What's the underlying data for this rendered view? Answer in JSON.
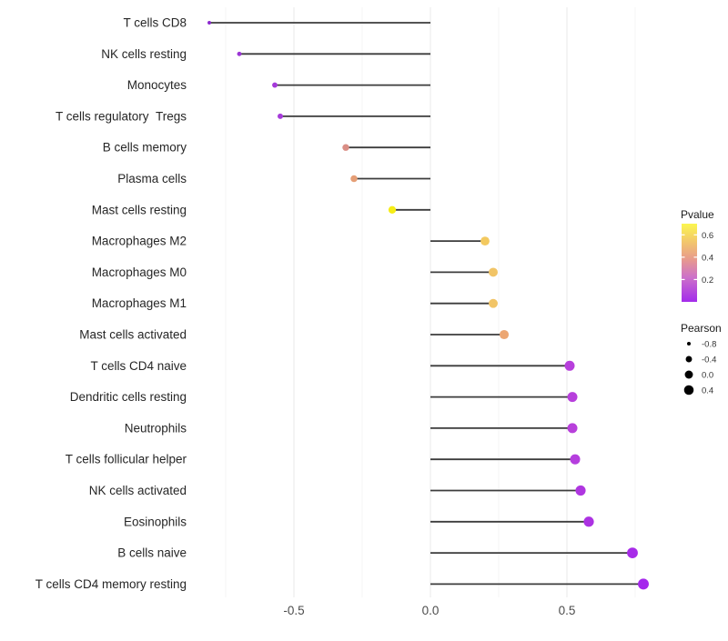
{
  "figure": {
    "background": "#ffffff"
  },
  "chart_data": {
    "type": "scatter",
    "variant": "lollipop",
    "orientation": "horizontal",
    "title": "",
    "xlabel": "",
    "ylabel": "",
    "xlim": [
      -0.89,
      0.87
    ],
    "x_ticks": [
      {
        "label": "-0.5",
        "value": -0.5
      },
      {
        "label": "0.0",
        "value": 0.0
      },
      {
        "label": "0.5",
        "value": 0.5
      }
    ],
    "x_minor_ticks": [
      -0.75,
      -0.25,
      0.25,
      0.75
    ],
    "grid": "vertical only, light gray on white, no axis lines",
    "points": [
      {
        "label": "T cells CD8",
        "pearson": -0.81,
        "color": "#8B27CE"
      },
      {
        "label": "NK cells resting",
        "pearson": -0.7,
        "color": "#9B35D5"
      },
      {
        "label": "Monocytes",
        "pearson": -0.57,
        "color": "#A43AD9"
      },
      {
        "label": "T cells regulatory  Tregs",
        "pearson": -0.55,
        "color": "#A63BDA"
      },
      {
        "label": "B cells memory",
        "pearson": -0.31,
        "color": "#DA8E85"
      },
      {
        "label": "Plasma cells",
        "pearson": -0.28,
        "color": "#E59E76"
      },
      {
        "label": "Mast cells resting",
        "pearson": -0.14,
        "color": "#F6ED16"
      },
      {
        "label": "Macrophages M2",
        "pearson": 0.2,
        "color": "#F3C95F"
      },
      {
        "label": "Macrophages M0",
        "pearson": 0.23,
        "color": "#F1C466"
      },
      {
        "label": "Macrophages M1",
        "pearson": 0.23,
        "color": "#F1C466"
      },
      {
        "label": "Mast cells activated",
        "pearson": 0.27,
        "color": "#ECA672"
      },
      {
        "label": "T cells CD4 naive",
        "pearson": 0.51,
        "color": "#B73FDC"
      },
      {
        "label": "Dendritic cells resting",
        "pearson": 0.52,
        "color": "#B73FDC"
      },
      {
        "label": "Neutrophils",
        "pearson": 0.52,
        "color": "#B840DB"
      },
      {
        "label": "T cells follicular helper",
        "pearson": 0.53,
        "color": "#B53EDE"
      },
      {
        "label": "NK cells activated",
        "pearson": 0.55,
        "color": "#AF36E0"
      },
      {
        "label": "Eosinophils",
        "pearson": 0.58,
        "color": "#AC32E2"
      },
      {
        "label": "B cells naive",
        "pearson": 0.74,
        "color": "#A72BE8"
      },
      {
        "label": "T cells CD4 memory resting",
        "pearson": 0.78,
        "color": "#A527EC"
      }
    ],
    "legends": {
      "pvalue": {
        "title": "Pvalue",
        "range": [
          0,
          0.7
        ],
        "tick_labels": [
          {
            "label": "0.6",
            "value": 0.6
          },
          {
            "label": "0.4",
            "value": 0.4
          },
          {
            "label": "0.2",
            "value": 0.2
          }
        ],
        "gradient_stops": [
          {
            "offset": 0.0,
            "color": "#FBF64F"
          },
          {
            "offset": 0.22,
            "color": "#F3C96A"
          },
          {
            "offset": 0.45,
            "color": "#E89B8C"
          },
          {
            "offset": 0.68,
            "color": "#CD72C8"
          },
          {
            "offset": 1.0,
            "color": "#A32BEB"
          }
        ]
      },
      "pearson": {
        "title": "Pearson",
        "items": [
          {
            "label": "-0.8",
            "value": -0.8
          },
          {
            "label": "-0.4",
            "value": -0.4
          },
          {
            "label": "0.0",
            "value": 0.0
          },
          {
            "label": "0.4",
            "value": 0.4
          }
        ]
      }
    },
    "style": {
      "stem_color": "#3C3C3C",
      "major_grid_color": "#E9E9E9",
      "minor_grid_color": "#F4F4F4",
      "axis_text_color": "#4D4D4D",
      "category_text_color": "#262626",
      "legend_title_color": "#1A1A1A",
      "legend_text_color": "#333333"
    }
  }
}
